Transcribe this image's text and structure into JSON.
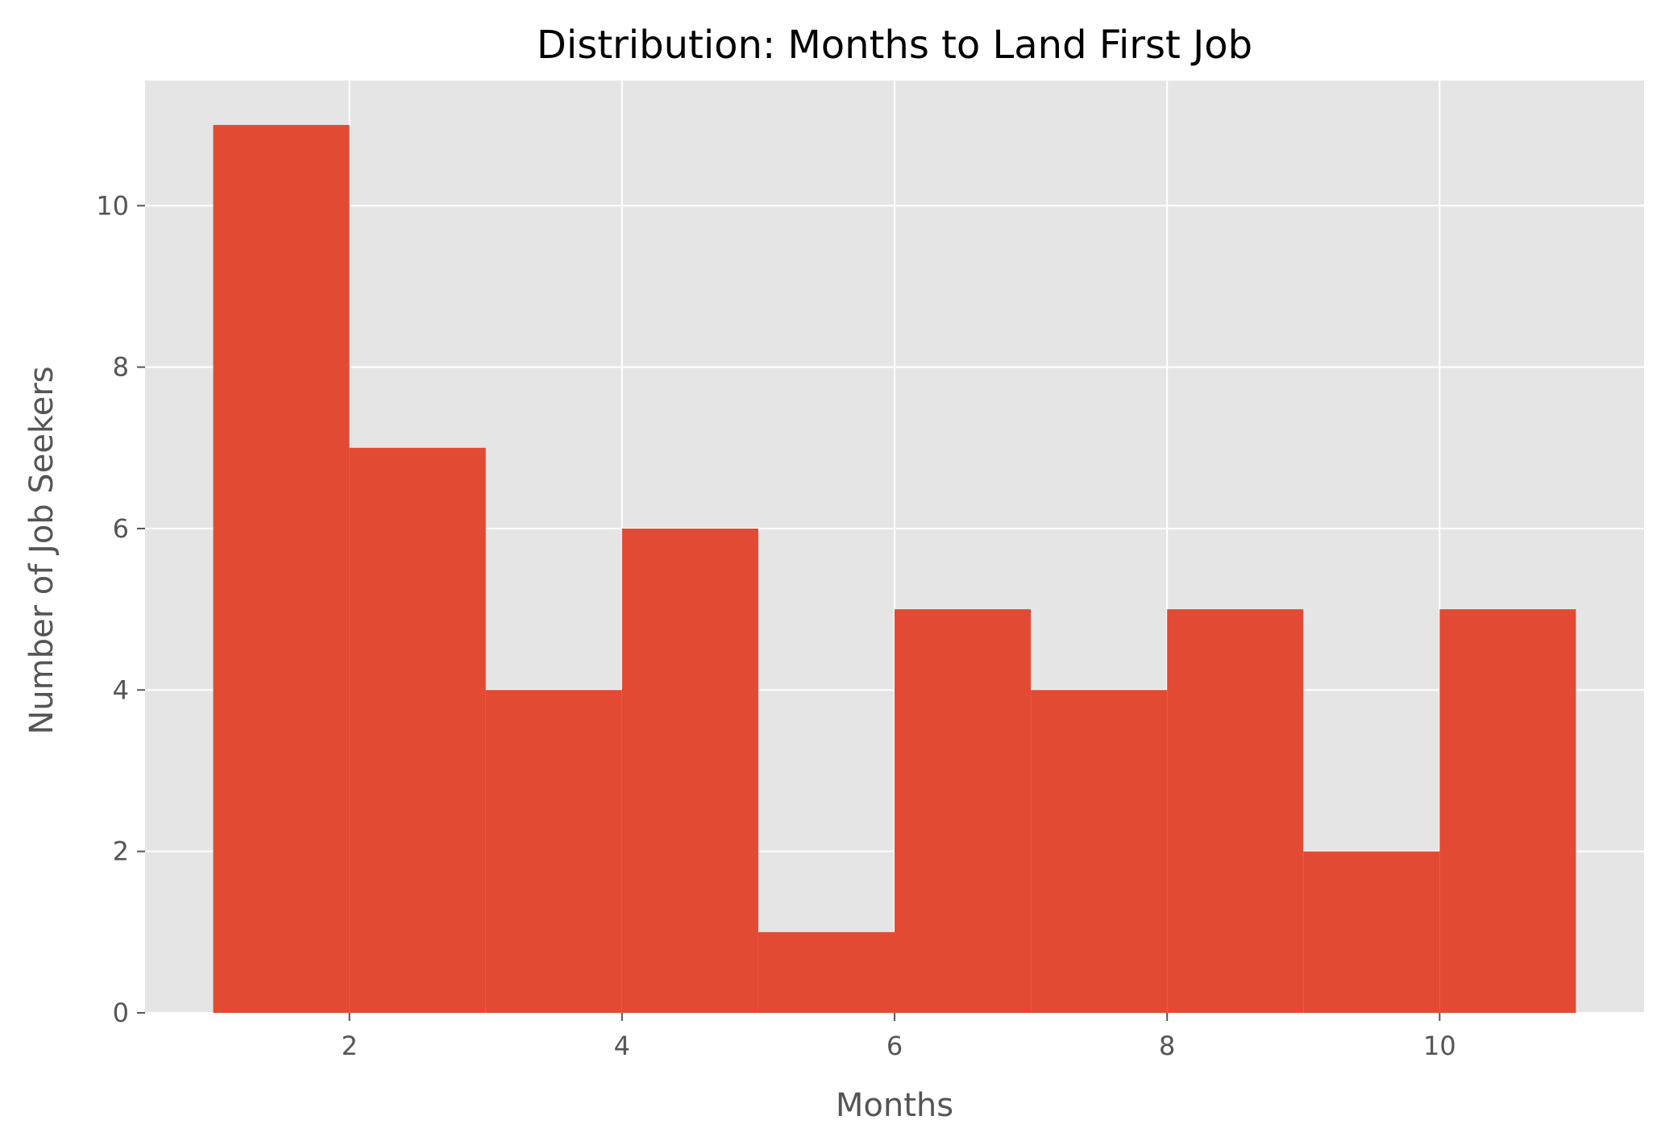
{
  "chart_data": {
    "type": "bar",
    "title": "Distribution: Months to Land First Job",
    "xlabel": "Months",
    "ylabel": "Number of Job Seekers",
    "bins": [
      {
        "start": 1,
        "end": 2,
        "count": 11
      },
      {
        "start": 2,
        "end": 3,
        "count": 7
      },
      {
        "start": 3,
        "end": 4,
        "count": 4
      },
      {
        "start": 4,
        "end": 5,
        "count": 6
      },
      {
        "start": 5,
        "end": 6,
        "count": 1
      },
      {
        "start": 6,
        "end": 7,
        "count": 5
      },
      {
        "start": 7,
        "end": 8,
        "count": 4
      },
      {
        "start": 8,
        "end": 9,
        "count": 5
      },
      {
        "start": 9,
        "end": 10,
        "count": 2
      },
      {
        "start": 10,
        "end": 11,
        "count": 5
      }
    ],
    "xlim": [
      0.5,
      11.5
    ],
    "ylim": [
      0,
      11.55
    ],
    "xticks": [
      "2",
      "4",
      "6",
      "8",
      "10"
    ],
    "yticks": [
      "0",
      "2",
      "4",
      "6",
      "8",
      "10"
    ],
    "grid": true,
    "colors": {
      "bar": "#E24A33",
      "plot_background": "#E5E5E5",
      "grid": "#FFFFFF"
    }
  }
}
